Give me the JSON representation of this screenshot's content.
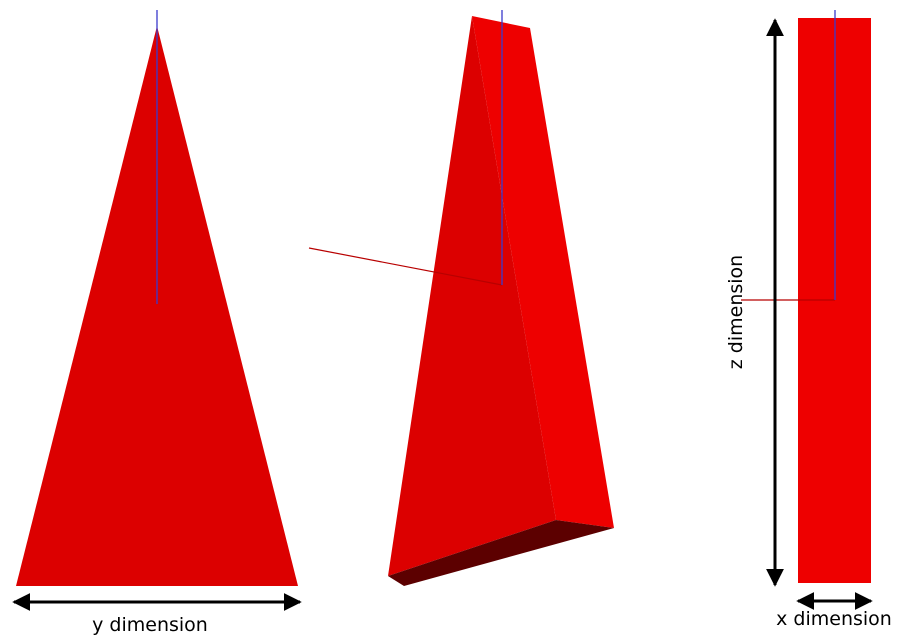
{
  "labels": {
    "y_dimension": "y dimension",
    "z_dimension": "z dimension",
    "x_dimension": "x dimension"
  },
  "colors": {
    "front_face": "#dc0000",
    "side_face_light": "#ee0000",
    "bottom_face": "#5c0000",
    "axis_blue": "#3a3acc",
    "axis_red": "#b80000",
    "arrow": "#000000",
    "background": "#ffffff"
  },
  "icons": {
    "dimension_arrow": "double-headed-arrow"
  }
}
